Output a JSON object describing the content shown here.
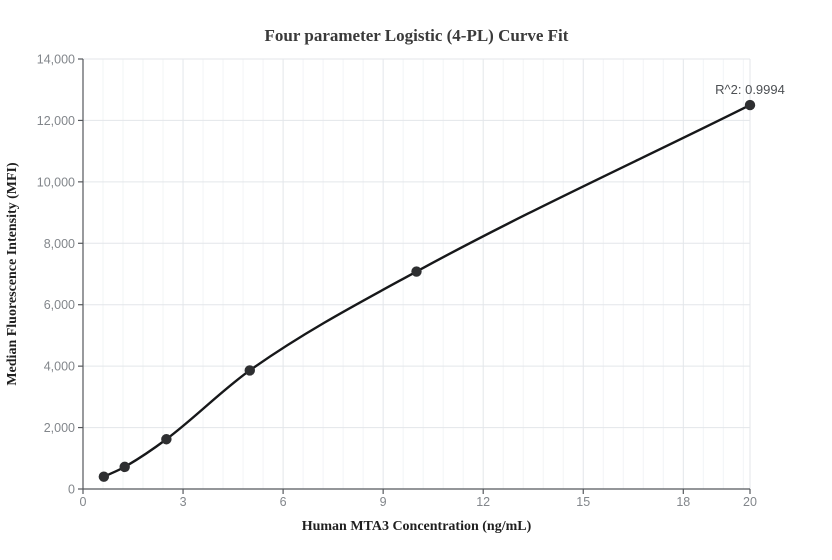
{
  "chart_data": {
    "type": "scatter",
    "title": "Four parameter Logistic (4-PL) Curve Fit",
    "xlabel": "Human MTA3 Concentration (ng/mL)",
    "ylabel": "Median Fluorescence Intensity (MFI)",
    "annotation": "R^2: 0.9994",
    "r_squared": 0.9994,
    "points": [
      {
        "x": 0.625,
        "y": 400
      },
      {
        "x": 1.25,
        "y": 720
      },
      {
        "x": 2.5,
        "y": 1620
      },
      {
        "x": 5,
        "y": 3860
      },
      {
        "x": 10,
        "y": 7080
      },
      {
        "x": 20,
        "y": 12500
      }
    ],
    "x_ticks": [
      0,
      3,
      6,
      9,
      12,
      15,
      18,
      20
    ],
    "y_ticks": [
      0,
      2000,
      4000,
      6000,
      8000,
      10000,
      12000,
      14000
    ],
    "xlim": [
      0,
      20
    ],
    "ylim": [
      0,
      14000
    ],
    "grid": "on",
    "x_minor_step": 0.6,
    "legend_position": "none",
    "curve_style": "smooth fit through all points"
  },
  "colors": {
    "background": "#ffffff",
    "curve": "#17181a",
    "point": "#2e2f31",
    "grid_major": "#e3e6ea",
    "grid_minor": "#f2f4f6",
    "axis": "#55585c",
    "tick_label": "#82868b",
    "title": "#3a3a3a",
    "axis_label": "#1f1f1f",
    "annotation": "#4d5054"
  }
}
